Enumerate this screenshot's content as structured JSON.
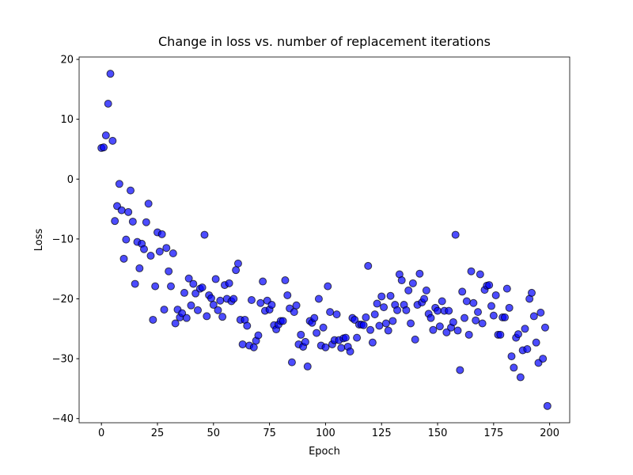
{
  "chart_data": {
    "type": "scatter",
    "title": "Change in loss vs. number of replacement iterations",
    "x_label": "Epoch",
    "y_label": "Loss",
    "x": [
      0,
      1,
      2,
      3,
      4,
      5,
      6,
      7,
      8,
      9,
      10,
      11,
      12,
      13,
      14,
      15,
      16,
      17,
      18,
      19,
      20,
      21,
      22,
      23,
      24,
      25,
      26,
      27,
      28,
      29,
      30,
      31,
      32,
      33,
      34,
      35,
      36,
      37,
      38,
      39,
      40,
      41,
      42,
      43,
      44,
      45,
      46,
      47,
      48,
      49,
      50,
      51,
      52,
      53,
      54,
      55,
      56,
      57,
      58,
      59,
      60,
      61,
      62,
      63,
      64,
      65,
      66,
      67,
      68,
      69,
      70,
      71,
      72,
      73,
      74,
      75,
      76,
      77,
      78,
      79,
      80,
      81,
      82,
      83,
      84,
      85,
      86,
      87,
      88,
      89,
      90,
      91,
      92,
      93,
      94,
      95,
      96,
      97,
      98,
      99,
      100,
      101,
      102,
      103,
      104,
      105,
      106,
      107,
      108,
      109,
      110,
      111,
      112,
      113,
      114,
      115,
      116,
      117,
      118,
      119,
      120,
      121,
      122,
      123,
      124,
      125,
      126,
      127,
      128,
      129,
      130,
      131,
      132,
      133,
      134,
      135,
      136,
      137,
      138,
      139,
      140,
      141,
      142,
      143,
      144,
      145,
      146,
      147,
      148,
      149,
      150,
      151,
      152,
      153,
      154,
      155,
      156,
      157,
      158,
      159,
      160,
      161,
      162,
      163,
      164,
      165,
      166,
      167,
      168,
      169,
      170,
      171,
      172,
      173,
      174,
      175,
      176,
      177,
      178,
      179,
      180,
      181,
      182,
      183,
      184,
      185,
      186,
      187,
      188,
      189,
      190,
      191,
      192,
      193,
      194,
      195,
      196,
      197,
      198,
      199
    ],
    "values": [
      5.2,
      5.3,
      7.3,
      12.6,
      17.6,
      6.4,
      -7.0,
      -4.5,
      -0.8,
      -5.2,
      -13.3,
      -10.1,
      -5.5,
      -1.9,
      -7.1,
      -17.5,
      -10.5,
      -14.9,
      -10.8,
      -11.7,
      -7.2,
      -4.1,
      -12.8,
      -23.5,
      -17.9,
      -8.9,
      -12.1,
      -9.2,
      -21.8,
      -11.5,
      -15.4,
      -17.9,
      -12.4,
      -24.1,
      -21.8,
      -23.1,
      -22.4,
      -19.0,
      -23.2,
      -16.6,
      -21.1,
      -17.5,
      -19.1,
      -21.9,
      -18.3,
      -18.1,
      -9.3,
      -22.9,
      -19.4,
      -19.9,
      -21.0,
      -16.7,
      -21.9,
      -20.3,
      -23.0,
      -17.7,
      -20.0,
      -17.4,
      -20.4,
      -20.0,
      -15.2,
      -14.1,
      -23.5,
      -27.6,
      -23.5,
      -24.5,
      -27.8,
      -20.2,
      -28.1,
      -27.0,
      -26.1,
      -20.7,
      -17.1,
      -22.0,
      -20.3,
      -21.8,
      -21.0,
      -24.4,
      -25.1,
      -24.3,
      -23.7,
      -23.7,
      -16.9,
      -19.4,
      -21.6,
      -30.6,
      -22.2,
      -21.1,
      -27.6,
      -26.0,
      -28.0,
      -27.2,
      -31.3,
      -23.7,
      -24.0,
      -23.2,
      -25.7,
      -20.0,
      -27.8,
      -24.8,
      -28.1,
      -17.9,
      -22.2,
      -27.6,
      -26.9,
      -22.6,
      -26.9,
      -28.2,
      -26.6,
      -26.5,
      -28.0,
      -28.8,
      -23.2,
      -23.5,
      -26.5,
      -24.3,
      -24.3,
      -24.4,
      -23.1,
      -14.5,
      -25.2,
      -27.3,
      -22.6,
      -20.8,
      -24.5,
      -19.6,
      -21.4,
      -24.1,
      -25.3,
      -19.5,
      -23.7,
      -21.0,
      -21.9,
      -15.9,
      -16.9,
      -21.0,
      -21.9,
      -18.6,
      -24.1,
      -17.4,
      -26.8,
      -21.0,
      -15.8,
      -20.6,
      -20.0,
      -18.6,
      -22.5,
      -23.2,
      -25.2,
      -21.5,
      -22.0,
      -24.6,
      -20.4,
      -22.0,
      -25.6,
      -22.0,
      -24.8,
      -23.9,
      -9.3,
      -25.3,
      -31.9,
      -18.8,
      -23.2,
      -20.4,
      -26.0,
      -15.4,
      -20.7,
      -23.6,
      -22.2,
      -15.9,
      -24.1,
      -18.5,
      -17.8,
      -17.7,
      -21.2,
      -22.8,
      -19.4,
      -26.0,
      -26.0,
      -23.1,
      -23.1,
      -18.3,
      -21.5,
      -29.6,
      -31.5,
      -26.5,
      -25.9,
      -33.1,
      -28.6,
      -25.0,
      -28.4,
      -20.0,
      -19.0,
      -22.9,
      -27.3,
      -30.7,
      -22.3,
      -30.0,
      -24.8,
      -37.9
    ],
    "color": "#0000ff",
    "alpha": 0.7,
    "edgecolor": "#000000",
    "xlim": [
      -9.95,
      208.95
    ],
    "xticks": [
      0,
      25,
      50,
      75,
      100,
      125,
      150,
      175,
      200
    ],
    "ylim": [
      -40.7,
      20.4
    ],
    "yticks": [
      {
        "value": -40,
        "label": "−40"
      },
      {
        "value": -30,
        "label": "−30"
      },
      {
        "value": -20,
        "label": "−20"
      },
      {
        "value": -10,
        "label": "−10"
      },
      0,
      10,
      20
    ],
    "grid": false
  }
}
